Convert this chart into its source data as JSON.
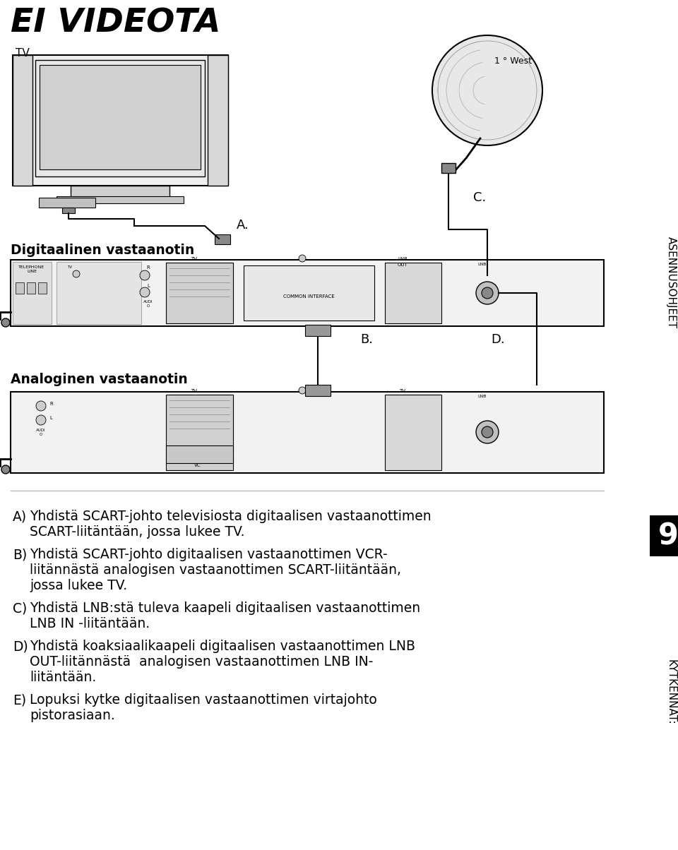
{
  "title": "EI VIDEOTA",
  "bg_color": "#ffffff",
  "text_color": "#000000",
  "sidebar_text_top": "ASENNUSOHJEET",
  "sidebar_number": "9",
  "sidebar_text_bottom": "KYTKENNÄT:",
  "label_tv": "TV",
  "label_digitaalinen": "Digitaalinen vastaanotin",
  "label_analoginen": "Analoginen vastaanotin",
  "label_A": "A.",
  "label_B": "B.",
  "label_C": "C.",
  "label_D": "D.",
  "label_1west": "1 ° West",
  "instr_A_label": "A)",
  "instr_A_line1": "Yhdistä SCART-johto televisiosta digitaalisen vastaanottimen",
  "instr_A_line2": "SCART-liitäntään, jossa lukee TV.",
  "instr_B_label": "B)",
  "instr_B_line1": "Yhdistä SCART-johto digitaalisen vastaanottimen VCR-",
  "instr_B_line2": "liitännästä analogisen vastaanottimen SCART-liitäntään,",
  "instr_B_line3": "jossa lukee TV.",
  "instr_C_label": "C)",
  "instr_C_line1": "Yhdistä LNB:stä tuleva kaapeli digitaalisen vastaanottimen",
  "instr_C_line2": "LNB IN -liitäntään.",
  "instr_D_label": "D)",
  "instr_D_line1": "Yhdistä koaksiaalikaapeli digitaalisen vastaanottimen LNB",
  "instr_D_line2": "OUT-liitännästä  analogisen vastaanottimen LNB IN-",
  "instr_D_line3": "liitäntään.",
  "instr_E_label": "E)",
  "instr_E_line1": "Lopuksi kytke digitaalisen vastaanottimen virtajohto",
  "instr_E_line2": "pistorasiaan.",
  "instruction_fontsize": 13.5,
  "title_fontsize": 34
}
